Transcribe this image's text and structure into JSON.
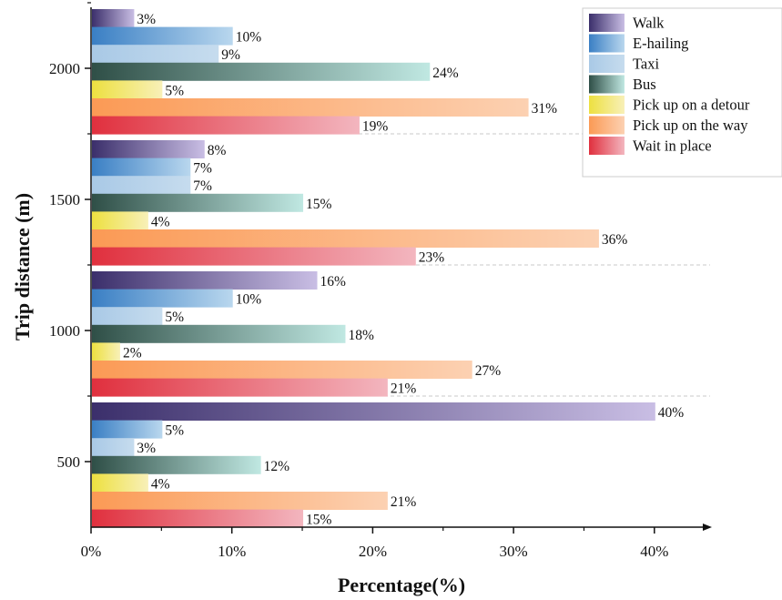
{
  "chart_data": {
    "type": "bar",
    "orientation": "horizontal",
    "xlabel": "Percentage(%)",
    "ylabel": "Trip distance (m)",
    "xlim": [
      0,
      44
    ],
    "xticks": [
      0,
      10,
      20,
      30,
      40
    ],
    "xtick_labels": [
      "0%",
      "10%",
      "20%",
      "30%",
      "40%"
    ],
    "categories": [
      "500",
      "1000",
      "1500",
      "2000"
    ],
    "legend_position": "top-right",
    "series": [
      {
        "name": "Walk",
        "values": [
          40,
          16,
          8,
          3
        ],
        "labels": [
          "40%",
          "16%",
          "8%",
          "3%"
        ],
        "color_start": "#3b2f6b",
        "color_end": "#c9bee4"
      },
      {
        "name": "E-hailing",
        "values": [
          5,
          10,
          7,
          10
        ],
        "labels": [
          "5%",
          "10%",
          "7%",
          "10%"
        ],
        "color_start": "#3a7fc4",
        "color_end": "#b9d7ee"
      },
      {
        "name": "Taxi",
        "values": [
          3,
          5,
          7,
          9
        ],
        "labels": [
          "3%",
          "5%",
          "7%",
          "9%"
        ],
        "color_start": "#a9c9e6",
        "color_end": "#c6dcee"
      },
      {
        "name": "Bus",
        "values": [
          12,
          18,
          15,
          24
        ],
        "labels": [
          "12%",
          "18%",
          "15%",
          "24%"
        ],
        "color_start": "#2f4f47",
        "color_end": "#c0e8e2"
      },
      {
        "name": "Pick up on a detour",
        "values": [
          4,
          2,
          4,
          5
        ],
        "labels": [
          "4%",
          "2%",
          "4%",
          "5%"
        ],
        "color_start": "#ede040",
        "color_end": "#f8f0b8"
      },
      {
        "name": "Pick up on the way",
        "values": [
          21,
          27,
          36,
          31
        ],
        "labels": [
          "21%",
          "27%",
          "36%",
          "31%"
        ],
        "color_start": "#fb9a55",
        "color_end": "#fcd1b2"
      },
      {
        "name": "Wait in place",
        "values": [
          15,
          21,
          23,
          19
        ],
        "labels": [
          "15%",
          "21%",
          "23%",
          "19%"
        ],
        "color_start": "#e0303e",
        "color_end": "#f3b6bf"
      }
    ]
  }
}
